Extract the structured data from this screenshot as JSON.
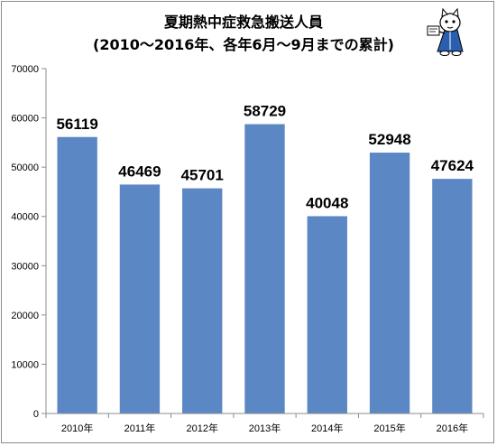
{
  "colors": {
    "bar": "#5b87c5",
    "axis": "#8c8c8c",
    "grid": "#d9d9d9",
    "background": "#ffffff"
  },
  "mascot_icon": "cartoon-cat-mascot-icon",
  "chart_data": {
    "type": "bar",
    "title_lines": [
      "夏期熱中症救急搬送人員",
      "(2010～2016年、各年6月～9月までの累計)"
    ],
    "xlabel": "",
    "ylabel": "",
    "categories": [
      "2010年",
      "2011年",
      "2012年",
      "2013年",
      "2014年",
      "2015年",
      "2016年"
    ],
    "values": [
      56119,
      46469,
      45701,
      58729,
      40048,
      52948,
      47624
    ],
    "data_labels": [
      "56119",
      "46469",
      "45701",
      "58729",
      "40048",
      "52948",
      "47624"
    ],
    "ylim": [
      0,
      70000
    ],
    "yticks": [
      0,
      10000,
      20000,
      30000,
      40000,
      50000,
      60000,
      70000
    ],
    "ytick_labels": [
      "0",
      "10000",
      "20000",
      "30000",
      "40000",
      "50000",
      "60000",
      "70000"
    ],
    "grid": false,
    "legend": "none"
  }
}
